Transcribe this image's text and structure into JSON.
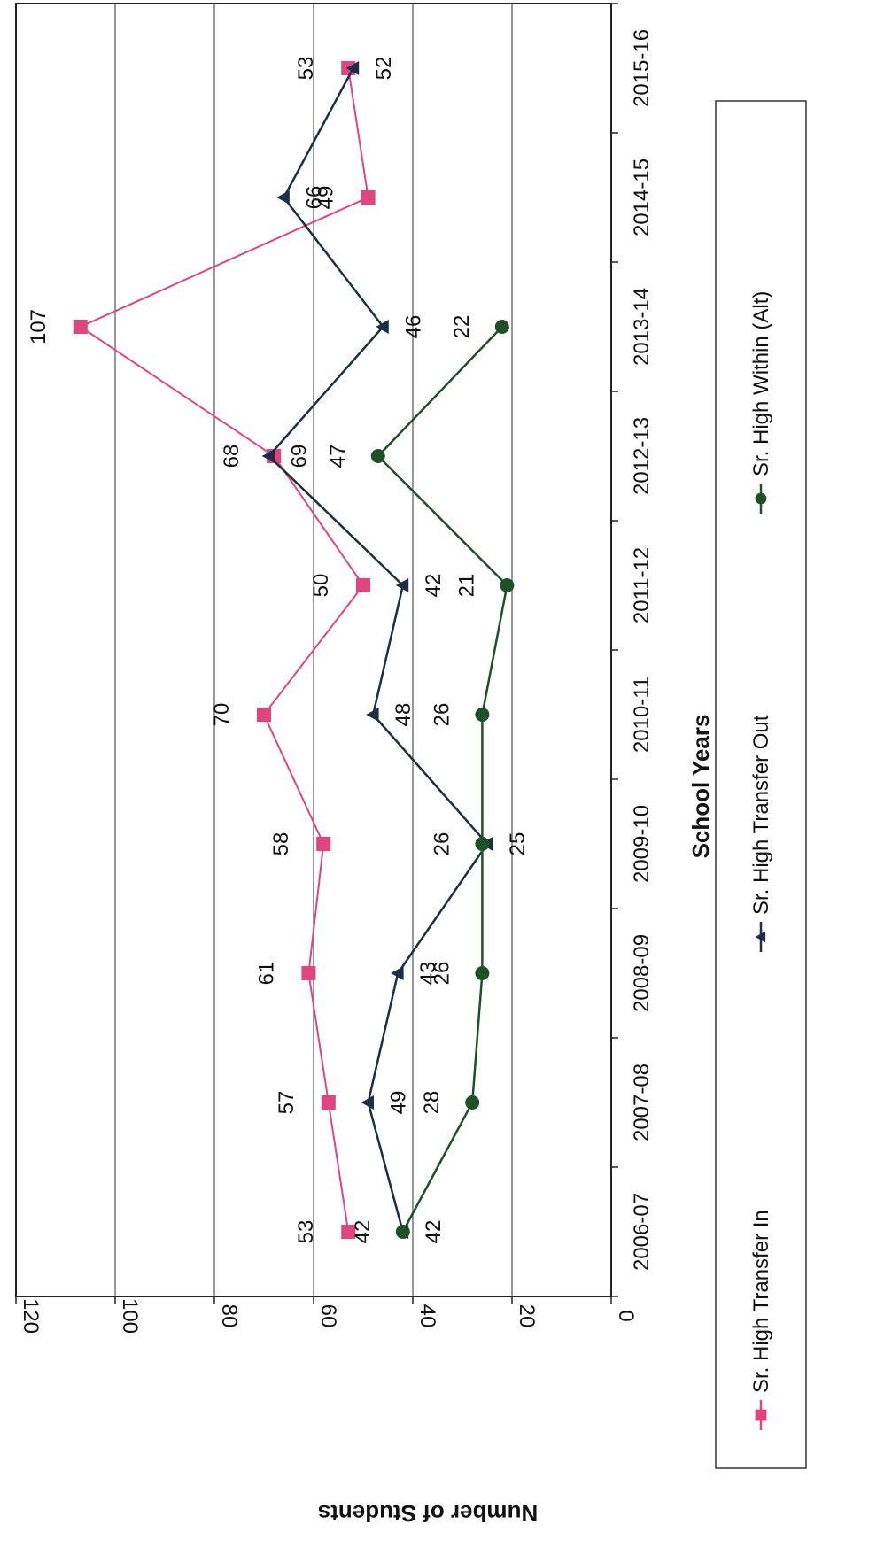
{
  "chart_data": {
    "type": "line",
    "orientation": "rotated-90-clockwise",
    "xlabel": "School Years",
    "ylabel": "Number of Students",
    "categories": [
      "2006-07",
      "2007-08",
      "2008-09",
      "2009-10",
      "2010-11",
      "2011-12",
      "2012-13",
      "2013-14",
      "2014-15",
      "2015-16"
    ],
    "ylim": [
      0,
      120
    ],
    "yticks": [
      "0",
      "20",
      "40",
      "60",
      "80",
      "100",
      "120"
    ],
    "grid": true,
    "legend_position": "bottom",
    "series": [
      {
        "name": "Sr. High Transfer In",
        "color": "#e0457f",
        "marker": "square",
        "values": [
          53,
          57,
          61,
          58,
          70,
          50,
          68,
          107,
          49,
          53
        ]
      },
      {
        "name": "Sr. High Transfer Out",
        "color": "#1c2f45",
        "marker": "triangle",
        "values": [
          42,
          49,
          43,
          25,
          48,
          42,
          69,
          46,
          66,
          52
        ]
      },
      {
        "name": "Sr. High Within (Alt)",
        "color": "#1f5128",
        "marker": "circle",
        "values": [
          42,
          28,
          26,
          26,
          26,
          21,
          47,
          22,
          null,
          null
        ]
      }
    ]
  }
}
